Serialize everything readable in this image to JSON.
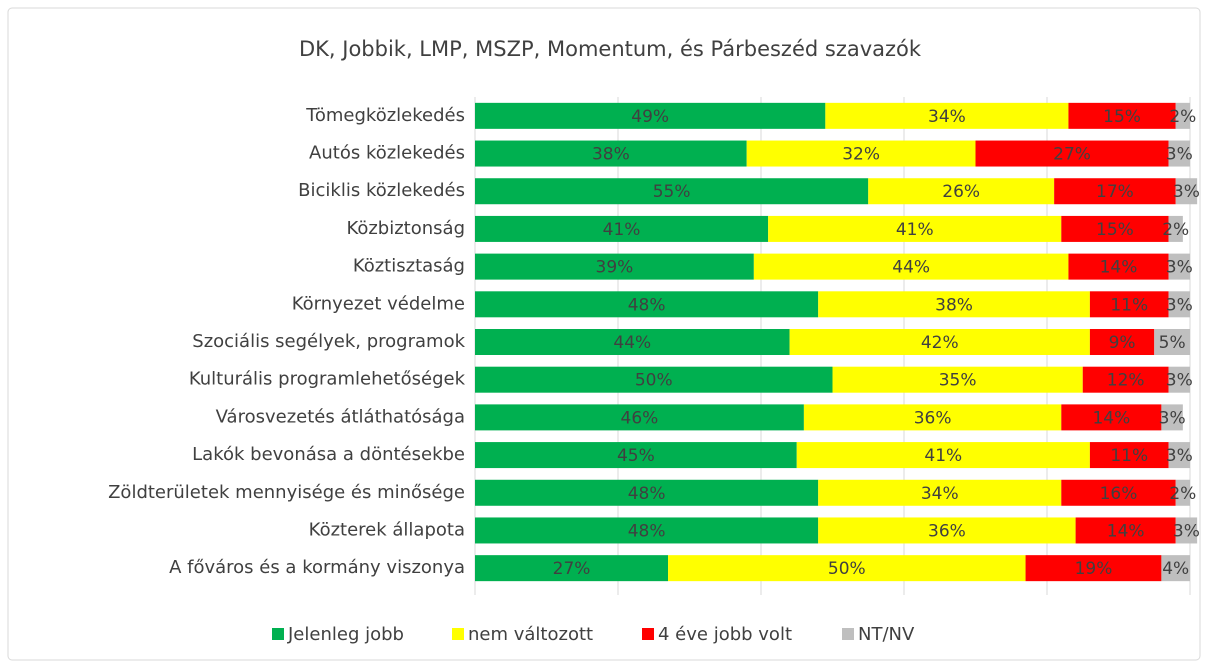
{
  "chart_data": {
    "type": "stacked_barh",
    "title": "DK, Jobbik, LMP, MSZP, Momentum, és Párbeszéd szavazók",
    "categories": [
      "Tömegközlekedés",
      "Autós közlekedés",
      "Biciklis közlekedés",
      "Közbiztonság",
      "Köztisztaság",
      "Környezet védelme",
      "Szociális segélyek, programok",
      "Kulturális programlehetőségek",
      "Városvezetés átláthatósága",
      "Lakók bevonása a döntésekbe",
      "Zöldterületek mennyisége és minősége",
      "Közterek állapota",
      "A főváros és a kormány viszonya"
    ],
    "series": [
      {
        "name": "Jelenleg jobb",
        "color": "#00b050",
        "values": [
          49,
          38,
          55,
          41,
          39,
          48,
          44,
          50,
          46,
          45,
          48,
          48,
          27
        ],
        "value_labels": [
          "49%",
          "38%",
          "55%",
          "41%",
          "39%",
          "48%",
          "44%",
          "50%",
          "46%",
          "45%",
          "48%",
          "48%",
          "27%"
        ]
      },
      {
        "name": "nem változott",
        "color": "#ffff00",
        "values": [
          34,
          32,
          26,
          41,
          44,
          38,
          42,
          35,
          36,
          41,
          34,
          36,
          50
        ],
        "value_labels": [
          "34%",
          "32%",
          "26%",
          "41%",
          "44%",
          "38%",
          "42%",
          "35%",
          "36%",
          "41%",
          "34%",
          "36%",
          "50%"
        ]
      },
      {
        "name": "4 éve jobb volt",
        "color": "#ff0000",
        "values": [
          15,
          27,
          17,
          15,
          14,
          11,
          9,
          12,
          14,
          11,
          16,
          14,
          19
        ],
        "value_labels": [
          "15%",
          "27%",
          "17%",
          "15%",
          "14%",
          "11%",
          "9%",
          "12%",
          "14%",
          "11%",
          "16%",
          "14%",
          "19%"
        ]
      },
      {
        "name": "NT/NV",
        "color": "#bfbfbf",
        "values": [
          2,
          3,
          3,
          2,
          3,
          3,
          5,
          3,
          3,
          3,
          2,
          3,
          4
        ],
        "value_labels": [
          "2%",
          "3%",
          "3%",
          "2%",
          "3%",
          "3%",
          "5%",
          "3%",
          "3%",
          "3%",
          "2%",
          "3%",
          "4%"
        ]
      }
    ],
    "xlim": [
      0,
      100
    ],
    "xticks": [
      0,
      20,
      40,
      60,
      80,
      100
    ],
    "grid": true,
    "legend": "bottom"
  }
}
